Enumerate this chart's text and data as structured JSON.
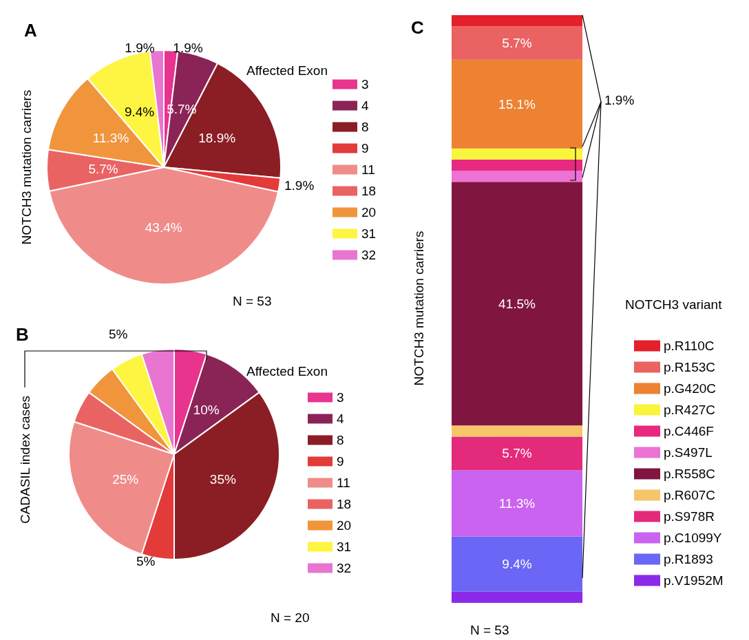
{
  "chart_data": [
    {
      "type": "pie",
      "title": "A",
      "ylabel": "NOTCH3 mutation carriers",
      "legend_title": "Affected Exon",
      "legend": "right",
      "categories": [
        "3",
        "4",
        "8",
        "9",
        "11",
        "18",
        "20",
        "31",
        "32"
      ],
      "values": [
        1.9,
        5.7,
        18.9,
        1.9,
        43.4,
        5.7,
        11.3,
        9.4,
        1.9
      ],
      "colors": [
        "#e8338f",
        "#8b2456",
        "#8b1e24",
        "#e33a3a",
        "#ef8c8a",
        "#ea6363",
        "#f0953c",
        "#fdf542",
        "#e875d0"
      ],
      "value_labels": [
        "1.9%",
        "5.7%",
        "18.9%",
        "1.9%",
        "43.4%",
        "5.7%",
        "11.3%",
        "9.4%",
        "1.9%"
      ],
      "annotations": [
        "N = 53"
      ]
    },
    {
      "type": "pie",
      "title": "B",
      "ylabel": "CADASIL index cases",
      "legend_title": "Affected Exon",
      "legend": "right",
      "categories": [
        "3",
        "4",
        "8",
        "9",
        "11",
        "18",
        "20",
        "31",
        "32"
      ],
      "values": [
        5,
        10,
        35,
        5,
        25,
        5,
        5,
        5,
        5
      ],
      "colors": [
        "#e8338f",
        "#8b2456",
        "#8b1e24",
        "#e33a3a",
        "#ef8c8a",
        "#ea6363",
        "#f0953c",
        "#fdf542",
        "#e875d0"
      ],
      "value_labels": [
        null,
        "10%",
        "35%",
        "5%",
        "25%",
        null,
        null,
        null,
        null
      ],
      "annotations": [
        "5%",
        "N = 20"
      ]
    },
    {
      "type": "bar",
      "title": "C",
      "ylabel": "NOTCH3 mutation carriers",
      "legend_title": "NOTCH3 variant",
      "legend": "right",
      "stacked": true,
      "categories": [
        null
      ],
      "annotations": [
        "1.9%",
        "N = 53"
      ],
      "series": [
        {
          "name": "p.V1952M",
          "color": "#8b2ae8",
          "values": [
            1.9
          ]
        },
        {
          "name": "p.R1893",
          "color": "#6b66f5",
          "values": [
            9.4
          ],
          "value_labels": [
            "9.4%"
          ]
        },
        {
          "name": "p.C1099Y",
          "color": "#ca63f0",
          "values": [
            11.3
          ],
          "value_labels": [
            "11.3%"
          ]
        },
        {
          "name": "p.S978R",
          "color": "#e42a7a",
          "values": [
            5.7
          ],
          "value_labels": [
            "5.7%"
          ]
        },
        {
          "name": "p.R607C",
          "color": "#f6c56a",
          "values": [
            1.9
          ]
        },
        {
          "name": "p.R558C",
          "color": "#801640",
          "values": [
            41.5
          ],
          "value_labels": [
            "41.5%"
          ]
        },
        {
          "name": "p.S497L",
          "color": "#ec72d4",
          "values": [
            1.9
          ]
        },
        {
          "name": "p.C446F",
          "color": "#e72980",
          "values": [
            1.9
          ]
        },
        {
          "name": "p.R427C",
          "color": "#f9f53a",
          "values": [
            1.9
          ]
        },
        {
          "name": "p.G420C",
          "color": "#ec8232",
          "values": [
            15.1
          ],
          "value_labels": [
            "15.1%"
          ]
        },
        {
          "name": "p.R153C",
          "color": "#ea6262",
          "values": [
            5.7
          ],
          "value_labels": [
            "5.7%"
          ]
        },
        {
          "name": "p.R110C",
          "color": "#e4202a",
          "values": [
            1.9
          ]
        }
      ]
    }
  ]
}
